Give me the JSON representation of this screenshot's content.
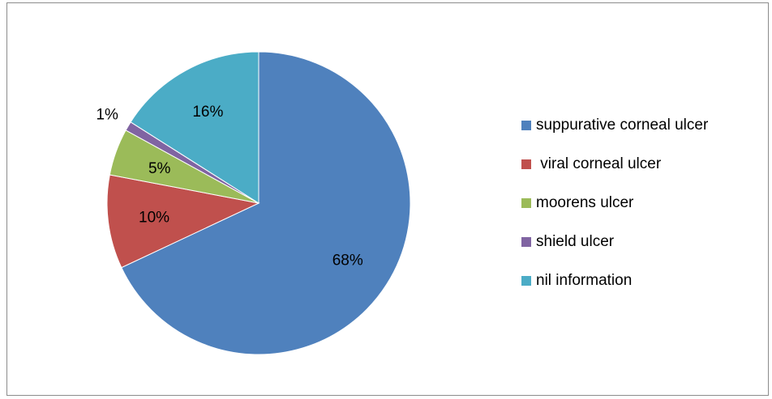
{
  "chart_data": {
    "type": "pie",
    "title": "",
    "categories": [
      "suppurative corneal ulcer",
      " viral corneal ulcer",
      "moorens ulcer",
      "shield ulcer",
      "nil information"
    ],
    "values": [
      68,
      10,
      5,
      1,
      16
    ],
    "data_labels": [
      "68%",
      "10%",
      "5%",
      "1%",
      "16%"
    ],
    "colors": [
      "#4f81bd",
      "#c0504d",
      "#9bbb59",
      "#8064a2",
      "#4bacc6"
    ],
    "start_angle_deg": 0,
    "direction": "clockwise",
    "legend_position": "right"
  }
}
